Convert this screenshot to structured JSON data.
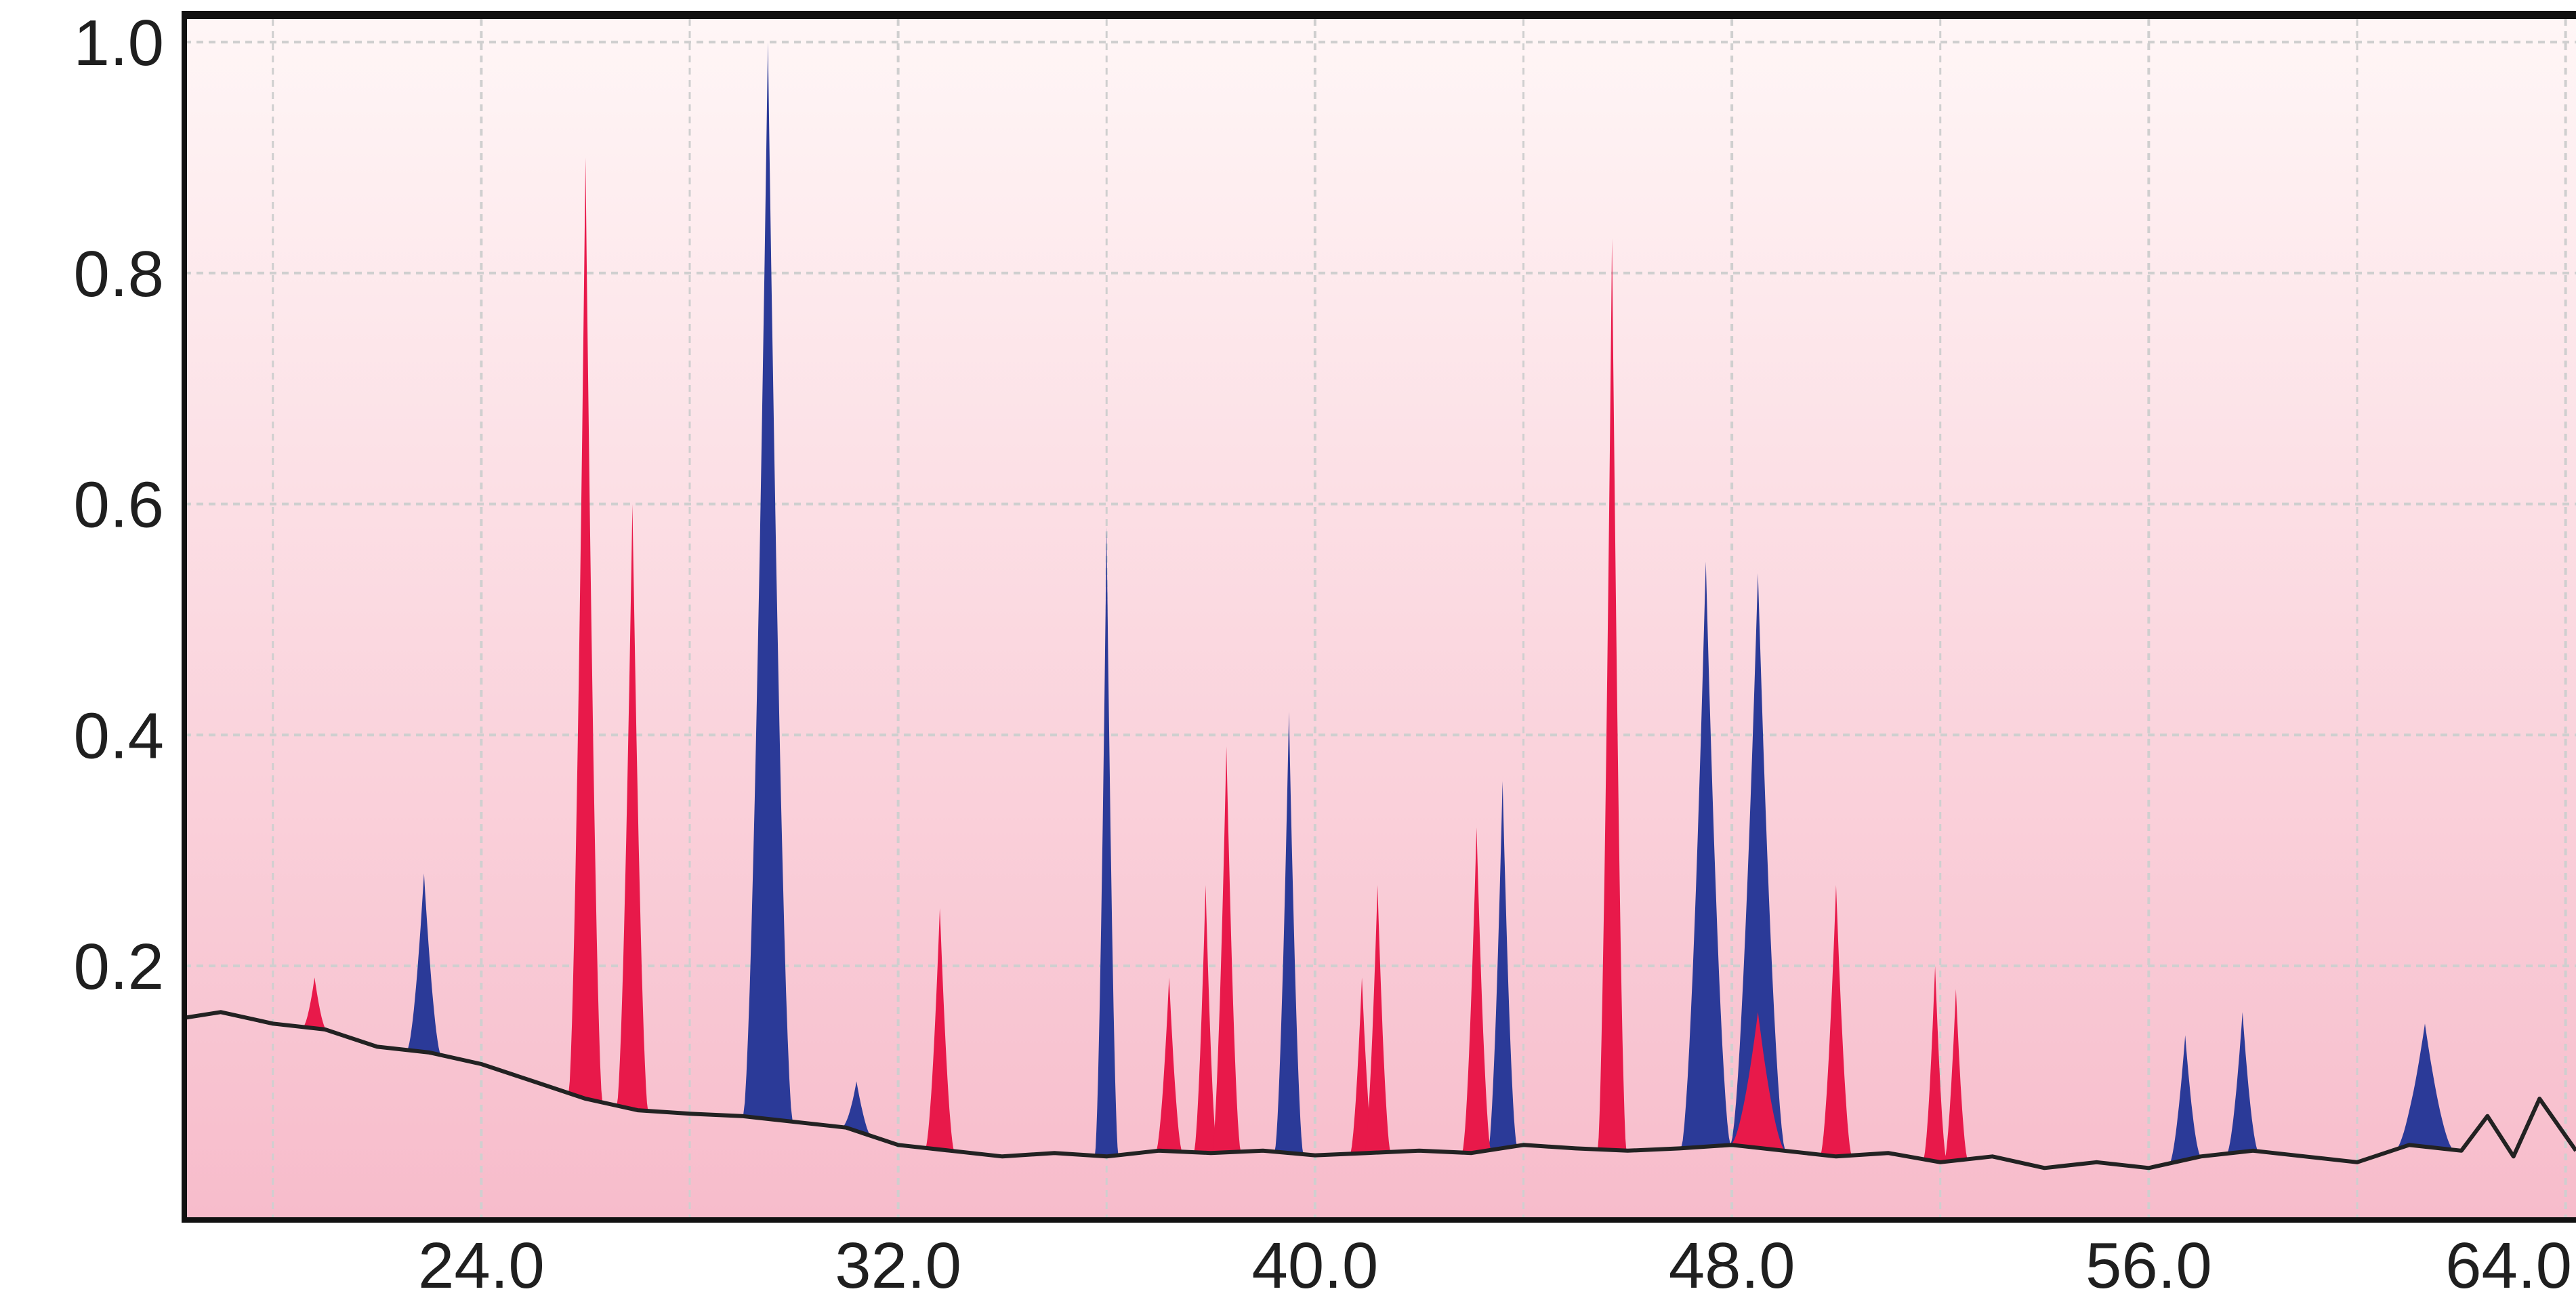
{
  "chart_data": {
    "type": "area",
    "title": "",
    "xlabel": "",
    "ylabel": "",
    "xlim": [
      18.3,
      64.2
    ],
    "ylim": [
      -0.02,
      1.02
    ],
    "grid": true,
    "colors": {
      "red_series": "#e8194a",
      "blue_series": "#2b3a98",
      "baseline": "#222222",
      "background_top": "#fff6f6",
      "background_bottom": "#f7bccb",
      "grid": "#cfcfcf"
    },
    "x_tick_labels": [
      "24.0",
      "32.0",
      "40.0",
      "48.0",
      "56.0",
      "64.0"
    ],
    "x_ticks": [
      24,
      32,
      40,
      48,
      56,
      64
    ],
    "y_tick_labels": [
      "0.2",
      "0.4",
      "0.6",
      "0.8",
      "1.0"
    ],
    "y_ticks": [
      0.2,
      0.4,
      0.6,
      0.8,
      1.0
    ],
    "baseline": {
      "x": [
        18.3,
        19.0,
        20.0,
        21.0,
        22.0,
        23.0,
        24.0,
        25.0,
        26.0,
        27.0,
        28.0,
        29.0,
        30.0,
        31.0,
        32.0,
        33.0,
        34.0,
        35.0,
        36.0,
        37.0,
        38.0,
        39.0,
        40.0,
        41.0,
        42.0,
        43.0,
        44.0,
        45.0,
        46.0,
        47.0,
        48.0,
        49.0,
        50.0,
        51.0,
        52.0,
        53.0,
        54.0,
        55.0,
        56.0,
        57.0,
        58.0,
        59.0,
        60.0,
        61.0,
        62.0,
        62.5,
        63.0,
        63.5,
        64.2
      ],
      "y": [
        0.155,
        0.16,
        0.15,
        0.145,
        0.13,
        0.125,
        0.115,
        0.1,
        0.085,
        0.075,
        0.072,
        0.07,
        0.065,
        0.06,
        0.045,
        0.04,
        0.035,
        0.038,
        0.035,
        0.04,
        0.038,
        0.04,
        0.036,
        0.038,
        0.04,
        0.038,
        0.045,
        0.042,
        0.04,
        0.042,
        0.045,
        0.04,
        0.035,
        0.038,
        0.03,
        0.035,
        0.025,
        0.03,
        0.025,
        0.035,
        0.04,
        0.035,
        0.03,
        0.045,
        0.04,
        0.07,
        0.035,
        0.085,
        0.04
      ]
    },
    "series": [
      {
        "color": "red",
        "peaks": [
          {
            "x": 20.8,
            "height": 0.19,
            "width": 0.45
          },
          {
            "x": 26.0,
            "height": 0.9,
            "width": 0.65
          },
          {
            "x": 26.9,
            "height": 0.6,
            "width": 0.6
          },
          {
            "x": 32.8,
            "height": 0.25,
            "width": 0.55
          },
          {
            "x": 37.2,
            "height": 0.19,
            "width": 0.5
          },
          {
            "x": 37.9,
            "height": 0.27,
            "width": 0.45
          },
          {
            "x": 38.3,
            "height": 0.39,
            "width": 0.55
          },
          {
            "x": 40.9,
            "height": 0.19,
            "width": 0.45
          },
          {
            "x": 41.2,
            "height": 0.27,
            "width": 0.5
          },
          {
            "x": 43.1,
            "height": 0.32,
            "width": 0.55
          },
          {
            "x": 45.7,
            "height": 0.83,
            "width": 0.55
          },
          {
            "x": 48.5,
            "height": 0.16,
            "width": 1.05
          },
          {
            "x": 50.0,
            "height": 0.27,
            "width": 0.6
          },
          {
            "x": 51.9,
            "height": 0.2,
            "width": 0.45
          },
          {
            "x": 52.3,
            "height": 0.18,
            "width": 0.45
          }
        ]
      },
      {
        "color": "blue",
        "peaks": [
          {
            "x": 22.9,
            "height": 0.28,
            "width": 0.65
          },
          {
            "x": 29.5,
            "height": 1.0,
            "width": 0.95
          },
          {
            "x": 31.2,
            "height": 0.1,
            "width": 0.55
          },
          {
            "x": 36.0,
            "height": 0.58,
            "width": 0.45
          },
          {
            "x": 39.5,
            "height": 0.42,
            "width": 0.55
          },
          {
            "x": 43.6,
            "height": 0.36,
            "width": 0.55
          },
          {
            "x": 47.5,
            "height": 0.55,
            "width": 0.95
          },
          {
            "x": 48.5,
            "height": 0.54,
            "width": 1.05
          },
          {
            "x": 56.7,
            "height": 0.14,
            "width": 0.6
          },
          {
            "x": 57.8,
            "height": 0.16,
            "width": 0.6
          },
          {
            "x": 61.3,
            "height": 0.15,
            "width": 1.1
          }
        ]
      }
    ]
  }
}
